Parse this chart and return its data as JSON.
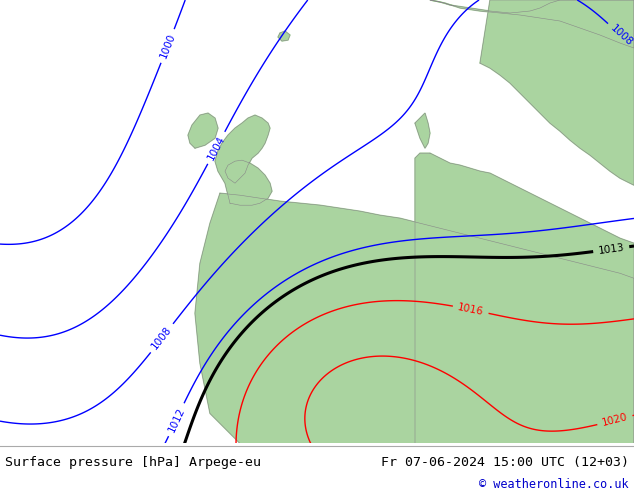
{
  "title_left": "Surface pressure [hPa] Arpege-eu",
  "title_right": "Fr 07-06-2024 15:00 UTC (12+03)",
  "copyright": "© weatheronline.co.uk",
  "bg_color": "#d8d8d8",
  "land_color": "#aad4a0",
  "bottom_bar_color": "#ffffff",
  "bottom_text_color": "#000000",
  "copyright_color": "#0000cc",
  "font_size_bottom": 9.5,
  "figure_width": 6.34,
  "figure_height": 4.9,
  "dpi": 100
}
